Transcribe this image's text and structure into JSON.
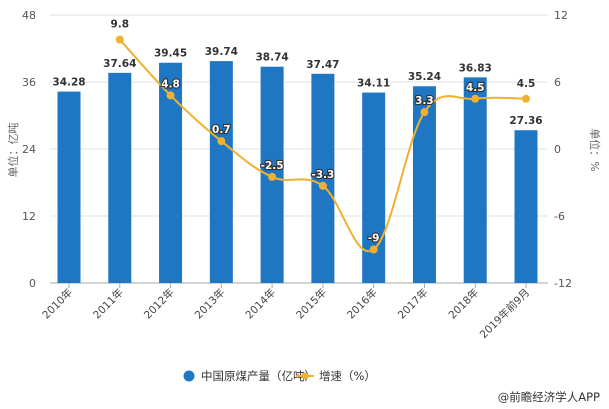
{
  "chart_data": {
    "type": "bar+line",
    "categories": [
      "2010年",
      "2011年",
      "2012年",
      "2013年",
      "2014年",
      "2015年",
      "2016年",
      "2017年",
      "2018年",
      "2019年前9月"
    ],
    "series": [
      {
        "name": "中国原煤产量（亿吨）",
        "type": "bar",
        "axis": "left",
        "color": "#1f77c4",
        "values": [
          34.28,
          37.64,
          39.45,
          39.74,
          38.74,
          37.47,
          34.11,
          35.24,
          36.83,
          27.36
        ]
      },
      {
        "name": "增速（%）",
        "type": "line",
        "axis": "right",
        "color": "#f0b030",
        "values": [
          null,
          9.8,
          4.8,
          0.7,
          -2.5,
          -3.3,
          -9,
          3.3,
          4.5,
          4.5
        ]
      }
    ],
    "ylabel": "单位：亿吨",
    "y2label": "单位：%",
    "ylim": [
      0,
      48
    ],
    "yticks": [
      "0",
      "12",
      "24",
      "36",
      "48"
    ],
    "y2lim": [
      -12,
      12
    ],
    "y2ticks": [
      "-12",
      "-6",
      "0",
      "6",
      "12"
    ],
    "grid": true,
    "legend": "bottom"
  },
  "credit": "@前瞻经济学人APP"
}
